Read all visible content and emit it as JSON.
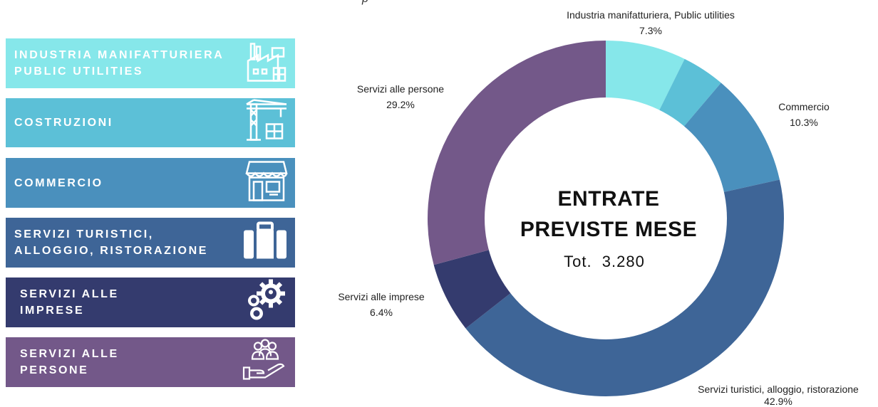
{
  "top_fragment": "p",
  "categories": [
    {
      "line1": "INDUSTRIA MANIFATTURIERA",
      "line2": "PUBLIC UTILITIES",
      "color": "#86e7ea",
      "icon": "factory-icon"
    },
    {
      "line1": "COSTRUZIONI",
      "line2": "",
      "color": "#5cc0d7",
      "icon": "crane-icon"
    },
    {
      "line1": "COMMERCIO",
      "line2": "",
      "color": "#4a90bd",
      "icon": "shop-icon"
    },
    {
      "line1": "SERVIZI TURISTICI,",
      "line2": "ALLOGGIO, RISTORAZIONE",
      "color": "#3e6597",
      "icon": "suitcase-icon"
    },
    {
      "line1": "SERVIZI ALLE",
      "line2": "IMPRESE",
      "color": "#343b6e",
      "icon": "gears-icon"
    },
    {
      "line1": "SERVIZI ALLE",
      "line2": "PERSONE",
      "color": "#735889",
      "icon": "people-hand-icon"
    }
  ],
  "chart_data": {
    "type": "pie",
    "donut": true,
    "center_title_line1": "ENTRATE",
    "center_title_line2": "PREVISTE MESE",
    "center_subtitle": "Tot.  3.280",
    "slices": [
      {
        "name": "Industria manifatturiera, Public utilities",
        "value_label": "7.3%",
        "value": 7.3,
        "color": "#86e7ea"
      },
      {
        "name": "",
        "value_label": "",
        "value": 3.9,
        "color": "#5cc0d7"
      },
      {
        "name": "Commercio",
        "value_label": "10.3%",
        "value": 10.3,
        "color": "#4a90bd"
      },
      {
        "name": "Servizi turistici, alloggio, ristorazione",
        "value_label": "42.9%",
        "value": 42.9,
        "color": "#3e6597"
      },
      {
        "name": "Servizi alle imprese",
        "value_label": "6.4%",
        "value": 6.4,
        "color": "#343b6e"
      },
      {
        "name": "Servizi alle persone",
        "value_label": "29.2%",
        "value": 29.2,
        "color": "#735889"
      }
    ]
  }
}
